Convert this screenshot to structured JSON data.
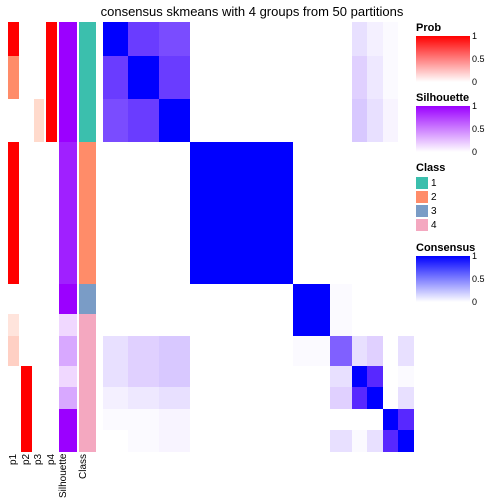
{
  "title": "consensus skmeans with 4 groups from 50 partitions",
  "row_heights": [
    0.08,
    0.1,
    0.1,
    0.11,
    0.11,
    0.11,
    0.07,
    0.05,
    0.07,
    0.05,
    0.05,
    0.05,
    0.05
  ],
  "annot_columns": [
    {
      "name": "p1",
      "wide": false,
      "cells": [
        "#ff0000",
        "#ff8c69",
        "#ffffff",
        "#ff0000",
        "#ff0000",
        "#ff0000",
        "#ffffff",
        "#ffe4dc",
        "#ffd0c4",
        "#ffffff",
        "#ffffff",
        "#ffffff",
        "#ffffff"
      ]
    },
    {
      "name": "p2",
      "wide": false,
      "cells": [
        "#ffffff",
        "#ffffff",
        "#ffffff",
        "#ffffff",
        "#ffffff",
        "#ffffff",
        "#ffffff",
        "#ffffff",
        "#ffffff",
        "#ff0000",
        "#ff0000",
        "#ff0000",
        "#ff0000"
      ]
    },
    {
      "name": "p3",
      "wide": false,
      "cells": [
        "#ffffff",
        "#ffffff",
        "#ffdacc",
        "#ffffff",
        "#ffffff",
        "#ffffff",
        "#ffffff",
        "#ffffff",
        "#ffffff",
        "#ffffff",
        "#ffffff",
        "#ffffff",
        "#ffffff"
      ]
    },
    {
      "name": "p4",
      "wide": false,
      "cells": [
        "#ff0000",
        "#ff0000",
        "#ff0000",
        "#ffffff",
        "#ffffff",
        "#ffffff",
        "#ffffff",
        "#ffffff",
        "#ffffff",
        "#ffffff",
        "#ffffff",
        "#ffffff",
        "#ffffff"
      ]
    },
    {
      "name": "Silhouette",
      "wide": true,
      "cells": [
        "#9b00ff",
        "#9b00ff",
        "#9b00ff",
        "#a020ff",
        "#a020ff",
        "#a020ff",
        "#9b00ff",
        "#f0d8ff",
        "#d8a8ff",
        "#f0d8ff",
        "#d8a8ff",
        "#9b00ff",
        "#9b00ff"
      ]
    },
    {
      "name": "Class",
      "wide": true,
      "cells": [
        "#3bbfad",
        "#3bbfad",
        "#3bbfad",
        "#ff8c69",
        "#ff8c69",
        "#ff8c69",
        "#7a9cc6",
        "#f4a8c0",
        "#f4a8c0",
        "#f4a8c0",
        "#f4a8c0",
        "#f4a8c0",
        "#f4a8c0"
      ]
    }
  ],
  "heatmap": {
    "col_widths": [
      0.08,
      0.1,
      0.1,
      0.11,
      0.11,
      0.11,
      0.07,
      0.05,
      0.07,
      0.05,
      0.05,
      0.05,
      0.05
    ],
    "rows": [
      [
        "#0000ff",
        "#6a3cff",
        "#7a4cff",
        "#ffffff",
        "#ffffff",
        "#ffffff",
        "#ffffff",
        "#ffffff",
        "#ffffff",
        "#e8e0ff",
        "#f4f0ff",
        "#fbfaff",
        "#ffffff"
      ],
      [
        "#6a3cff",
        "#0000ff",
        "#6a3cff",
        "#ffffff",
        "#ffffff",
        "#ffffff",
        "#ffffff",
        "#ffffff",
        "#ffffff",
        "#e0d0ff",
        "#eee8ff",
        "#fbfaff",
        "#ffffff"
      ],
      [
        "#7a4cff",
        "#6a3cff",
        "#0000ff",
        "#ffffff",
        "#ffffff",
        "#ffffff",
        "#ffffff",
        "#ffffff",
        "#ffffff",
        "#d8c8ff",
        "#e8e0ff",
        "#f8f4ff",
        "#ffffff"
      ],
      [
        "#ffffff",
        "#ffffff",
        "#ffffff",
        "#0000ff",
        "#0000ff",
        "#0000ff",
        "#ffffff",
        "#ffffff",
        "#ffffff",
        "#ffffff",
        "#ffffff",
        "#ffffff",
        "#ffffff"
      ],
      [
        "#ffffff",
        "#ffffff",
        "#ffffff",
        "#0000ff",
        "#0000ff",
        "#0000ff",
        "#ffffff",
        "#ffffff",
        "#ffffff",
        "#ffffff",
        "#ffffff",
        "#ffffff",
        "#ffffff"
      ],
      [
        "#ffffff",
        "#ffffff",
        "#ffffff",
        "#0000ff",
        "#0000ff",
        "#0000ff",
        "#ffffff",
        "#ffffff",
        "#ffffff",
        "#ffffff",
        "#ffffff",
        "#ffffff",
        "#ffffff"
      ],
      [
        "#ffffff",
        "#ffffff",
        "#ffffff",
        "#ffffff",
        "#ffffff",
        "#ffffff",
        "#0000ff",
        "#0000ff",
        "#fbfaff",
        "#ffffff",
        "#ffffff",
        "#ffffff",
        "#ffffff"
      ],
      [
        "#ffffff",
        "#ffffff",
        "#ffffff",
        "#ffffff",
        "#ffffff",
        "#ffffff",
        "#0000ff",
        "#0000ff",
        "#fbfaff",
        "#ffffff",
        "#ffffff",
        "#ffffff",
        "#ffffff"
      ],
      [
        "#e8e0ff",
        "#e0d0ff",
        "#d8c8ff",
        "#ffffff",
        "#ffffff",
        "#ffffff",
        "#fbfaff",
        "#fbfaff",
        "#8060ff",
        "#e8e0ff",
        "#e0d0ff",
        "#ffffff",
        "#e8e0ff"
      ],
      [
        "#e8e0ff",
        "#e0d0ff",
        "#d8c8ff",
        "#ffffff",
        "#ffffff",
        "#ffffff",
        "#ffffff",
        "#ffffff",
        "#e8e0ff",
        "#0000ff",
        "#5828ff",
        "#ffffff",
        "#fbfaff"
      ],
      [
        "#f4f0ff",
        "#eee8ff",
        "#e8e0ff",
        "#ffffff",
        "#ffffff",
        "#ffffff",
        "#ffffff",
        "#ffffff",
        "#e0d0ff",
        "#5828ff",
        "#0000ff",
        "#ffffff",
        "#e8e0ff"
      ],
      [
        "#fbfaff",
        "#fbfaff",
        "#f8f4ff",
        "#ffffff",
        "#ffffff",
        "#ffffff",
        "#ffffff",
        "#ffffff",
        "#ffffff",
        "#ffffff",
        "#ffffff",
        "#0000ff",
        "#5828ff"
      ],
      [
        "#ffffff",
        "#fbfaff",
        "#f8f4ff",
        "#ffffff",
        "#ffffff",
        "#ffffff",
        "#ffffff",
        "#ffffff",
        "#e8e0ff",
        "#fbfaff",
        "#e8e0ff",
        "#5828ff",
        "#0000ff"
      ]
    ]
  },
  "xlabels": [
    "p1",
    "p2",
    "p3",
    "p4",
    "Silhouette",
    "Class"
  ],
  "legends": {
    "prob": {
      "title": "Prob",
      "ticks": [
        "1",
        "0.5",
        "0"
      ],
      "gradient_top": "#ff0000",
      "gradient_bot": "#ffffff"
    },
    "sil": {
      "title": "Silhouette",
      "ticks": [
        "1",
        "0.5",
        "0"
      ],
      "gradient_top": "#9b00ff",
      "gradient_bot": "#ffffff"
    },
    "cls": {
      "title": "Class",
      "items": [
        {
          "label": "1",
          "color": "#3bbfad"
        },
        {
          "label": "2",
          "color": "#ff8c69"
        },
        {
          "label": "3",
          "color": "#7a9cc6"
        },
        {
          "label": "4",
          "color": "#f4a8c0"
        }
      ]
    },
    "cons": {
      "title": "Consensus",
      "ticks": [
        "1",
        "0.5",
        "0"
      ],
      "gradient_top": "#0000ff",
      "gradient_bot": "#ffffff"
    }
  }
}
